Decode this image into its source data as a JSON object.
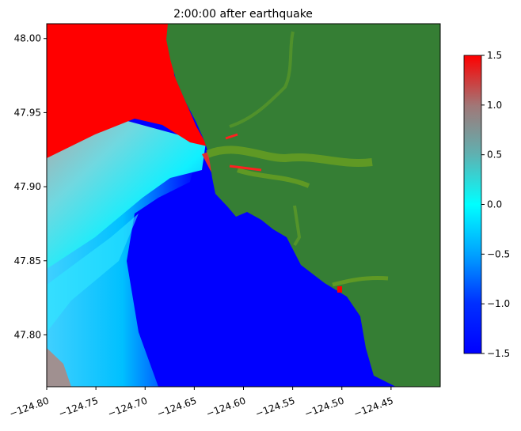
{
  "chart_data": {
    "type": "heatmap",
    "title": "2:00:00 after earthquake",
    "xlabel": "",
    "ylabel": "",
    "xlim": [
      -124.8,
      -124.4
    ],
    "ylim": [
      47.765,
      48.01
    ],
    "xticks": [
      -124.8,
      -124.75,
      -124.7,
      -124.65,
      -124.6,
      -124.55,
      -124.5,
      -124.45
    ],
    "xtick_labels": [
      "−124.80",
      "−124.75",
      "−124.70",
      "−124.65",
      "−124.60",
      "−124.55",
      "−124.50",
      "−124.45"
    ],
    "yticks": [
      48.0,
      47.95,
      47.9,
      47.85,
      47.8
    ],
    "ytick_labels": [
      "48.00",
      "47.95",
      "47.90",
      "47.85",
      "47.80"
    ],
    "colorbar": {
      "range": [
        -1.5,
        1.5
      ],
      "ticks": [
        1.5,
        1.0,
        0.5,
        0.0,
        -0.5,
        -1.0,
        -1.5
      ],
      "tick_labels": [
        "1.5",
        "1.0",
        "0.5",
        "0.0",
        "−0.5",
        "−1.0",
        "−1.5"
      ],
      "colors": [
        "#0000ff",
        "#0080ff",
        "#00ffff",
        "#80b0b0",
        "#a08080",
        "#ff0000"
      ]
    },
    "land_color": "#357e34",
    "grid": false
  }
}
